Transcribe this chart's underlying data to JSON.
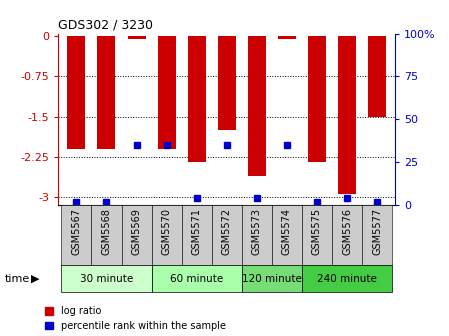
{
  "title": "GDS302 / 3230",
  "samples": [
    "GSM5567",
    "GSM5568",
    "GSM5569",
    "GSM5570",
    "GSM5571",
    "GSM5572",
    "GSM5573",
    "GSM5574",
    "GSM5575",
    "GSM5576",
    "GSM5577"
  ],
  "log_ratio": [
    -2.1,
    -2.1,
    -0.05,
    -2.1,
    -2.35,
    -1.75,
    -2.6,
    -0.05,
    -2.35,
    -2.95,
    -1.5
  ],
  "percentile": [
    2,
    2,
    35,
    35,
    4,
    35,
    4,
    35,
    2,
    4,
    2
  ],
  "groups": [
    {
      "label": "30 minute",
      "start": 0,
      "end": 3,
      "color": "#ccffcc"
    },
    {
      "label": "60 minute",
      "start": 3,
      "end": 6,
      "color": "#aaffaa"
    },
    {
      "label": "120 minute",
      "start": 6,
      "end": 8,
      "color": "#77dd77"
    },
    {
      "label": "240 minute",
      "start": 8,
      "end": 11,
      "color": "#44cc44"
    }
  ],
  "ylim": [
    -3.15,
    0.05
  ],
  "yticks": [
    0,
    -0.75,
    -1.5,
    -2.25,
    -3.0
  ],
  "ytick_labels": [
    "0",
    "-0.75",
    "-1.5",
    "-2.25",
    "-3"
  ],
  "right_yticks": [
    0,
    25,
    50,
    75,
    100
  ],
  "right_ytick_labels": [
    "0",
    "25",
    "50",
    "75",
    "100%"
  ],
  "bar_color": "#cc0000",
  "dot_color": "#0000cc",
  "bar_width": 0.6,
  "left_axis_color": "#cc0000",
  "right_axis_color": "#0000cc",
  "tick_label_bg": "#cccccc"
}
